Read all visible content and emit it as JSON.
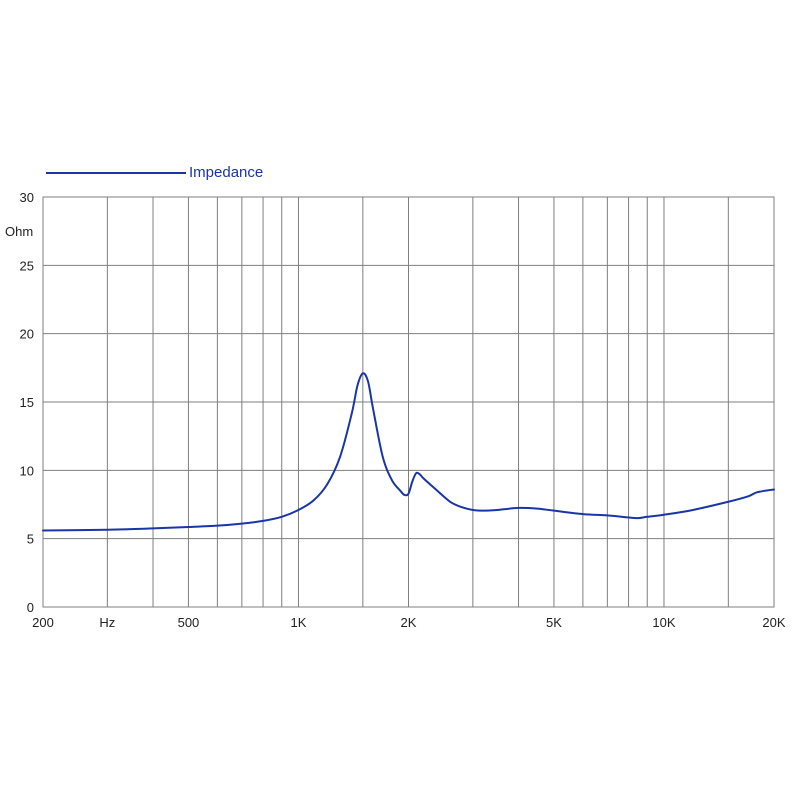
{
  "chart_data": {
    "type": "line",
    "x_scale": "log",
    "xlim": [
      200,
      20000
    ],
    "ylim": [
      0,
      30
    ],
    "grid": true,
    "legend_position": "top-left",
    "ylabel": "Ohm",
    "y_ticks": [
      "0",
      "5",
      "10",
      "15",
      "20",
      "25",
      "30"
    ],
    "y_tick_values": [
      0,
      5,
      10,
      15,
      20,
      25,
      30
    ],
    "x_tick_labels": [
      {
        "label": "200",
        "value": 200
      },
      {
        "label": "Hz",
        "value": 300
      },
      {
        "label": "500",
        "value": 500
      },
      {
        "label": "1K",
        "value": 1000
      },
      {
        "label": "2K",
        "value": 2000
      },
      {
        "label": "5K",
        "value": 5000
      },
      {
        "label": "10K",
        "value": 10000
      },
      {
        "label": "20K",
        "value": 20000
      }
    ],
    "x_gridlines": [
      200,
      300,
      400,
      500,
      600,
      700,
      800,
      900,
      1000,
      1500,
      2000,
      3000,
      4000,
      5000,
      6000,
      7000,
      8000,
      9000,
      10000,
      15000,
      20000
    ],
    "series": [
      {
        "name": "Impedance",
        "color": "#1a35a6",
        "x": [
          200,
          300,
          400,
          500,
          600,
          700,
          800,
          900,
          1000,
          1100,
          1200,
          1300,
          1400,
          1450,
          1500,
          1550,
          1600,
          1700,
          1800,
          1900,
          1950,
          2000,
          2050,
          2100,
          2150,
          2200,
          2400,
          2600,
          2800,
          3000,
          3200,
          3500,
          4000,
          4500,
          5000,
          6000,
          7000,
          8000,
          8500,
          9000,
          10000,
          12000,
          15000,
          17000,
          18000,
          20000
        ],
        "y": [
          5.6,
          5.65,
          5.75,
          5.85,
          5.95,
          6.1,
          6.3,
          6.6,
          7.1,
          7.8,
          9.0,
          11.0,
          14.2,
          16.2,
          17.1,
          16.5,
          14.5,
          11.0,
          9.3,
          8.5,
          8.2,
          8.3,
          9.2,
          9.8,
          9.7,
          9.4,
          8.5,
          7.7,
          7.3,
          7.1,
          7.05,
          7.1,
          7.25,
          7.2,
          7.05,
          6.8,
          6.7,
          6.55,
          6.5,
          6.6,
          6.75,
          7.1,
          7.7,
          8.1,
          8.4,
          8.6
        ]
      }
    ]
  },
  "colors": {
    "grid": "#7f7f7f",
    "line": "#1a35a6",
    "text": "#222222"
  }
}
